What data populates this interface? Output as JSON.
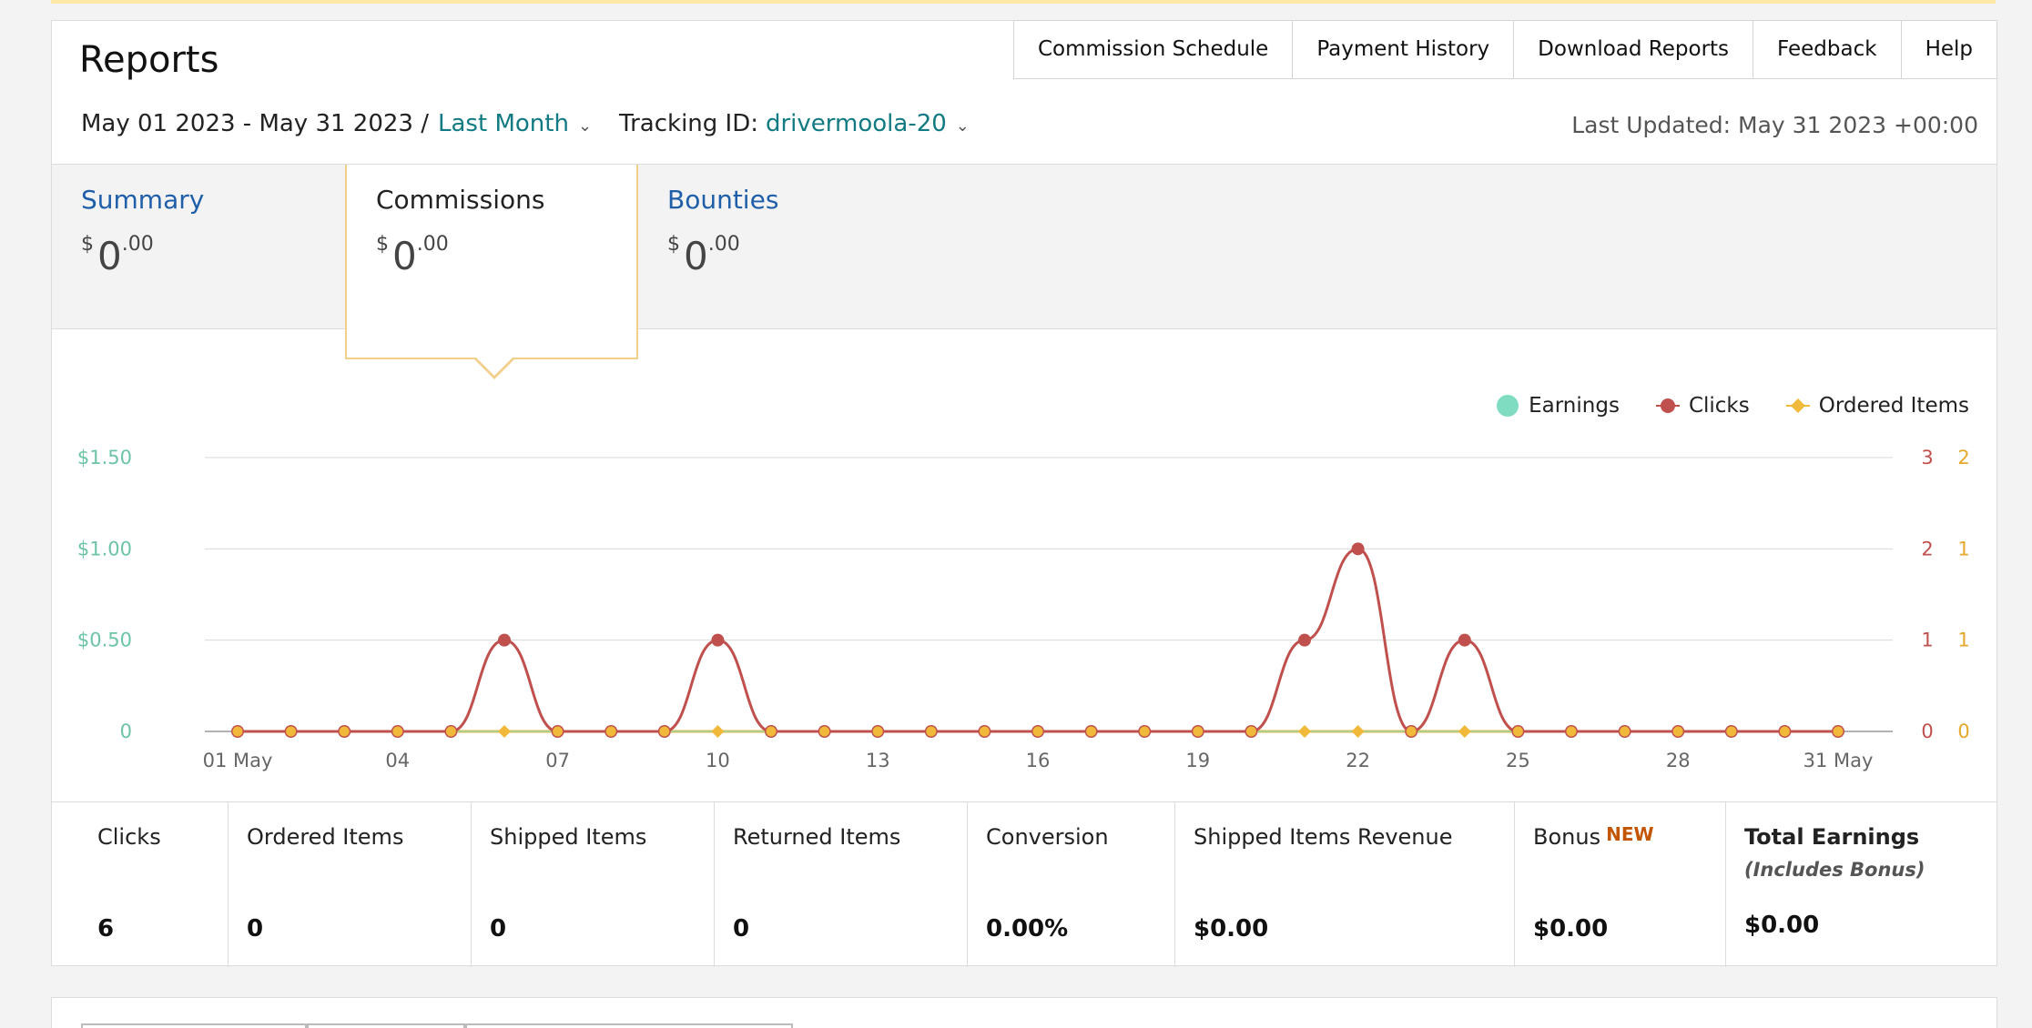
{
  "header": {
    "title": "Reports",
    "links": [
      {
        "label": "Commission Schedule"
      },
      {
        "label": "Payment History"
      },
      {
        "label": "Download Reports"
      },
      {
        "label": "Feedback"
      },
      {
        "label": "Help"
      }
    ]
  },
  "filters": {
    "date_range": "May 01 2023 - May 31 2023 /",
    "period": "Last Month",
    "tracking_label": "Tracking ID:",
    "tracking_id": "drivermoola-20",
    "last_updated": "Last Updated: May 31 2023 +00:00"
  },
  "tabs": [
    {
      "name": "Summary",
      "currency": "$",
      "whole": "0",
      "decimal": ".00",
      "active": false
    },
    {
      "name": "Commissions",
      "currency": "$",
      "whole": "0",
      "decimal": ".00",
      "active": true
    },
    {
      "name": "Bounties",
      "currency": "$",
      "whole": "0",
      "decimal": ".00",
      "active": false
    }
  ],
  "legend": {
    "earnings": "Earnings",
    "clicks": "Clicks",
    "ordered": "Ordered Items"
  },
  "colors": {
    "earnings": "#7fdcc0",
    "clicks": "#c0504d",
    "ordered": "#f0b93a",
    "earnings_axis": "#6cc4a4",
    "clicks_axis": "#c0504d",
    "ordered_axis": "#e6a82a",
    "link": "#117a82",
    "tab_link": "#1f5ea8",
    "new_badge": "#c45500"
  },
  "chart_data": {
    "type": "line",
    "x": [
      1,
      2,
      3,
      4,
      5,
      6,
      7,
      8,
      9,
      10,
      11,
      12,
      13,
      14,
      15,
      16,
      17,
      18,
      19,
      20,
      21,
      22,
      23,
      24,
      25,
      26,
      27,
      28,
      29,
      30,
      31
    ],
    "x_tick_labels": [
      "01 May",
      "04",
      "07",
      "10",
      "13",
      "16",
      "19",
      "22",
      "25",
      "28",
      "31 May"
    ],
    "x_tick_days": [
      1,
      4,
      7,
      10,
      13,
      16,
      19,
      22,
      25,
      28,
      31
    ],
    "y_left": {
      "ticks": [
        "0",
        "$0.50",
        "$1.00",
        "$1.50"
      ],
      "range": [
        0,
        1.5
      ]
    },
    "y_right_clicks": {
      "ticks": [
        "0",
        "1",
        "2",
        "3"
      ],
      "range": [
        0,
        3
      ]
    },
    "y_right_ordered": {
      "ticks": [
        "0",
        "1",
        "1",
        "2"
      ]
    },
    "series": [
      {
        "name": "Earnings",
        "values": [
          0,
          0,
          0,
          0,
          0,
          0,
          0,
          0,
          0,
          0,
          0,
          0,
          0,
          0,
          0,
          0,
          0,
          0,
          0,
          0,
          0,
          0,
          0,
          0,
          0,
          0,
          0,
          0,
          0,
          0,
          0
        ]
      },
      {
        "name": "Clicks",
        "values": [
          0,
          0,
          0,
          0,
          0,
          1,
          0,
          0,
          0,
          1,
          0,
          0,
          0,
          0,
          0,
          0,
          0,
          0,
          0,
          0,
          1,
          2,
          0,
          1,
          0,
          0,
          0,
          0,
          0,
          0,
          0
        ]
      },
      {
        "name": "Ordered Items",
        "values": [
          0,
          0,
          0,
          0,
          0,
          0,
          0,
          0,
          0,
          0,
          0,
          0,
          0,
          0,
          0,
          0,
          0,
          0,
          0,
          0,
          0,
          0,
          0,
          0,
          0,
          0,
          0,
          0,
          0,
          0,
          0
        ]
      }
    ],
    "grid": true,
    "legend_position": "top-right"
  },
  "stats": [
    {
      "label": "Clicks",
      "value": "6"
    },
    {
      "label": "Ordered Items",
      "value": "0"
    },
    {
      "label": "Shipped Items",
      "value": "0"
    },
    {
      "label": "Returned Items",
      "value": "0"
    },
    {
      "label": "Conversion",
      "value": "0.00%"
    },
    {
      "label": "Shipped Items Revenue",
      "value": "$0.00"
    },
    {
      "label": "Bonus",
      "badge": "NEW",
      "value": "$0.00"
    },
    {
      "label": "Total Earnings",
      "sub": "(Includes Bonus)",
      "value": "$0.00"
    }
  ]
}
